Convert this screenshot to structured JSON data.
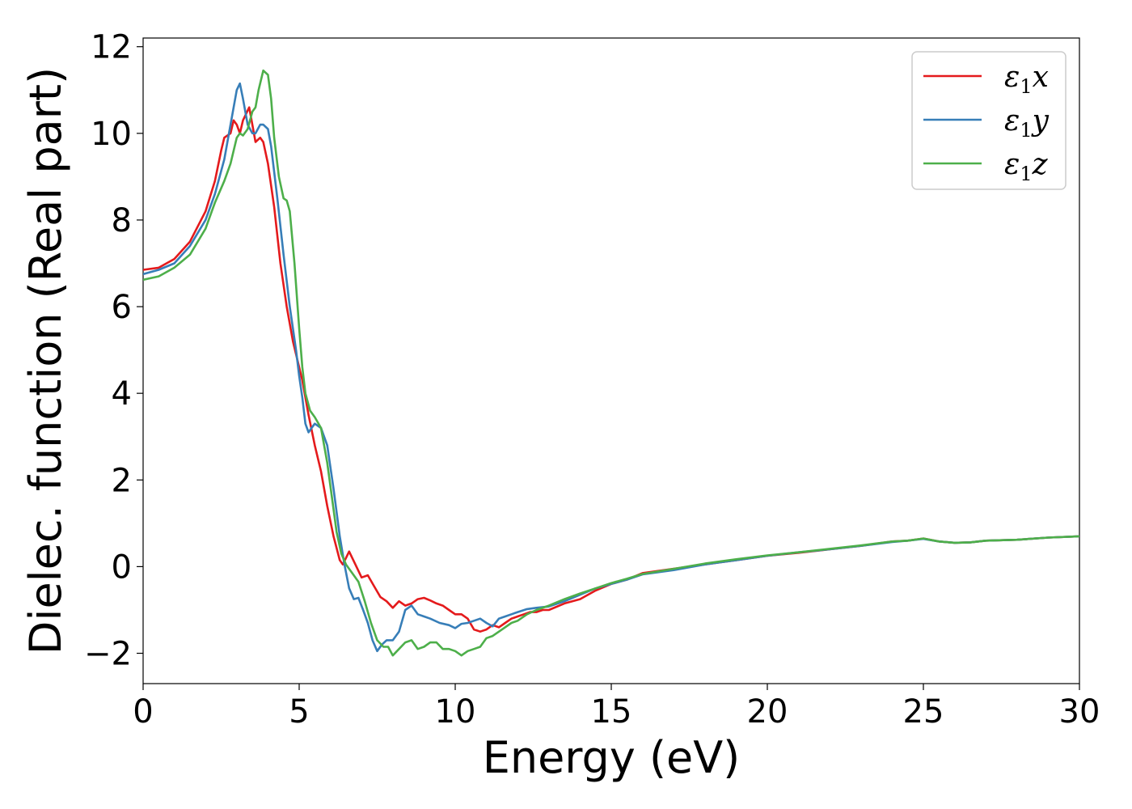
{
  "chart_data": {
    "type": "line",
    "title": "",
    "xlabel": "Energy (eV)",
    "ylabel": "Dielec. function (Real part)",
    "xlim": [
      0,
      30
    ],
    "ylim": [
      -2.7,
      12.2
    ],
    "x_ticks": [
      0,
      5,
      10,
      15,
      20,
      25,
      30
    ],
    "x_tick_labels": [
      "0",
      "5",
      "10",
      "15",
      "20",
      "25",
      "30"
    ],
    "y_ticks": [
      -2,
      0,
      2,
      4,
      6,
      8,
      10,
      12
    ],
    "y_tick_labels": [
      "−2",
      "0",
      "2",
      "4",
      "6",
      "8",
      "10",
      "12"
    ],
    "grid": false,
    "legend_position": "top-right",
    "series": [
      {
        "name": "ε",
        "sub": "1",
        "var": "x",
        "color": "#e41a1c",
        "points": [
          [
            0,
            6.85
          ],
          [
            0.5,
            6.9
          ],
          [
            1.0,
            7.1
          ],
          [
            1.5,
            7.5
          ],
          [
            2.0,
            8.2
          ],
          [
            2.3,
            8.9
          ],
          [
            2.5,
            9.6
          ],
          [
            2.6,
            9.9
          ],
          [
            2.8,
            10.0
          ],
          [
            2.9,
            10.3
          ],
          [
            3.0,
            10.2
          ],
          [
            3.1,
            10.0
          ],
          [
            3.2,
            10.3
          ],
          [
            3.4,
            10.6
          ],
          [
            3.6,
            9.8
          ],
          [
            3.75,
            9.9
          ],
          [
            3.85,
            9.8
          ],
          [
            4.0,
            9.3
          ],
          [
            4.2,
            8.3
          ],
          [
            4.4,
            7.0
          ],
          [
            4.6,
            6.0
          ],
          [
            4.8,
            5.2
          ],
          [
            5.0,
            4.6
          ],
          [
            5.1,
            4.3
          ],
          [
            5.3,
            3.5
          ],
          [
            5.5,
            2.8
          ],
          [
            5.7,
            2.2
          ],
          [
            5.9,
            1.4
          ],
          [
            6.1,
            0.7
          ],
          [
            6.3,
            0.15
          ],
          [
            6.4,
            0.05
          ],
          [
            6.5,
            0.2
          ],
          [
            6.6,
            0.35
          ],
          [
            6.8,
            0.05
          ],
          [
            7.0,
            -0.25
          ],
          [
            7.2,
            -0.2
          ],
          [
            7.4,
            -0.45
          ],
          [
            7.6,
            -0.7
          ],
          [
            7.8,
            -0.8
          ],
          [
            8.0,
            -0.95
          ],
          [
            8.2,
            -0.8
          ],
          [
            8.4,
            -0.9
          ],
          [
            8.6,
            -0.85
          ],
          [
            8.8,
            -0.75
          ],
          [
            9.0,
            -0.72
          ],
          [
            9.2,
            -0.78
          ],
          [
            9.4,
            -0.85
          ],
          [
            9.6,
            -0.9
          ],
          [
            9.8,
            -1.0
          ],
          [
            10.0,
            -1.1
          ],
          [
            10.2,
            -1.1
          ],
          [
            10.4,
            -1.2
          ],
          [
            10.6,
            -1.45
          ],
          [
            10.8,
            -1.5
          ],
          [
            11.0,
            -1.45
          ],
          [
            11.2,
            -1.35
          ],
          [
            11.4,
            -1.4
          ],
          [
            11.6,
            -1.3
          ],
          [
            11.8,
            -1.2
          ],
          [
            12.0,
            -1.15
          ],
          [
            12.2,
            -1.1
          ],
          [
            12.4,
            -1.05
          ],
          [
            12.6,
            -1.05
          ],
          [
            12.8,
            -1.0
          ],
          [
            13.0,
            -1.0
          ],
          [
            13.5,
            -0.85
          ],
          [
            14.0,
            -0.75
          ],
          [
            14.5,
            -0.55
          ],
          [
            15.0,
            -0.4
          ],
          [
            15.5,
            -0.3
          ],
          [
            16.0,
            -0.15
          ],
          [
            17.0,
            -0.05
          ],
          [
            18.0,
            0.05
          ],
          [
            19.0,
            0.15
          ],
          [
            20.0,
            0.25
          ],
          [
            21.0,
            0.32
          ],
          [
            22.0,
            0.4
          ],
          [
            23.0,
            0.48
          ],
          [
            24.0,
            0.58
          ],
          [
            24.5,
            0.6
          ],
          [
            25.0,
            0.65
          ],
          [
            25.5,
            0.58
          ],
          [
            26.0,
            0.55
          ],
          [
            26.5,
            0.56
          ],
          [
            27.0,
            0.6
          ],
          [
            28.0,
            0.62
          ],
          [
            29.0,
            0.67
          ],
          [
            30.0,
            0.7
          ]
        ]
      },
      {
        "name": "ε",
        "sub": "1",
        "var": "y",
        "color": "#377eb8",
        "points": [
          [
            0,
            6.75
          ],
          [
            0.5,
            6.85
          ],
          [
            1.0,
            7.0
          ],
          [
            1.5,
            7.4
          ],
          [
            2.0,
            8.0
          ],
          [
            2.3,
            8.6
          ],
          [
            2.6,
            9.4
          ],
          [
            2.8,
            10.2
          ],
          [
            3.0,
            11.0
          ],
          [
            3.1,
            11.15
          ],
          [
            3.2,
            10.8
          ],
          [
            3.35,
            10.2
          ],
          [
            3.5,
            10.0
          ],
          [
            3.6,
            10.0
          ],
          [
            3.75,
            10.2
          ],
          [
            3.85,
            10.2
          ],
          [
            4.0,
            10.1
          ],
          [
            4.1,
            9.7
          ],
          [
            4.3,
            8.5
          ],
          [
            4.5,
            7.2
          ],
          [
            4.7,
            6.0
          ],
          [
            4.9,
            5.0
          ],
          [
            5.0,
            4.4
          ],
          [
            5.1,
            3.9
          ],
          [
            5.2,
            3.3
          ],
          [
            5.3,
            3.1
          ],
          [
            5.4,
            3.2
          ],
          [
            5.5,
            3.3
          ],
          [
            5.7,
            3.2
          ],
          [
            5.9,
            2.8
          ],
          [
            6.1,
            1.8
          ],
          [
            6.3,
            0.7
          ],
          [
            6.45,
            0.05
          ],
          [
            6.6,
            -0.5
          ],
          [
            6.75,
            -0.75
          ],
          [
            6.9,
            -0.72
          ],
          [
            7.05,
            -1.0
          ],
          [
            7.2,
            -1.3
          ],
          [
            7.35,
            -1.7
          ],
          [
            7.5,
            -1.95
          ],
          [
            7.65,
            -1.8
          ],
          [
            7.8,
            -1.7
          ],
          [
            8.0,
            -1.7
          ],
          [
            8.2,
            -1.5
          ],
          [
            8.4,
            -1.0
          ],
          [
            8.6,
            -0.9
          ],
          [
            8.8,
            -1.1
          ],
          [
            9.0,
            -1.15
          ],
          [
            9.2,
            -1.2
          ],
          [
            9.5,
            -1.3
          ],
          [
            9.8,
            -1.35
          ],
          [
            10.0,
            -1.42
          ],
          [
            10.2,
            -1.32
          ],
          [
            10.4,
            -1.3
          ],
          [
            10.6,
            -1.25
          ],
          [
            10.8,
            -1.2
          ],
          [
            11.0,
            -1.3
          ],
          [
            11.2,
            -1.38
          ],
          [
            11.4,
            -1.2
          ],
          [
            11.6,
            -1.15
          ],
          [
            11.8,
            -1.1
          ],
          [
            12.0,
            -1.05
          ],
          [
            12.3,
            -0.98
          ],
          [
            12.6,
            -0.95
          ],
          [
            13.0,
            -0.92
          ],
          [
            13.5,
            -0.8
          ],
          [
            14.0,
            -0.65
          ],
          [
            14.5,
            -0.5
          ],
          [
            15.0,
            -0.4
          ],
          [
            15.5,
            -0.3
          ],
          [
            16.0,
            -0.18
          ],
          [
            17.0,
            -0.08
          ],
          [
            18.0,
            0.05
          ],
          [
            19.0,
            0.15
          ],
          [
            20.0,
            0.25
          ],
          [
            21.0,
            0.33
          ],
          [
            22.0,
            0.4
          ],
          [
            23.0,
            0.48
          ],
          [
            24.0,
            0.57
          ],
          [
            24.5,
            0.6
          ],
          [
            25.0,
            0.64
          ],
          [
            25.5,
            0.58
          ],
          [
            26.0,
            0.55
          ],
          [
            26.5,
            0.56
          ],
          [
            27.0,
            0.6
          ],
          [
            28.0,
            0.62
          ],
          [
            29.0,
            0.67
          ],
          [
            30.0,
            0.7
          ]
        ]
      },
      {
        "name": "ε",
        "sub": "1",
        "var": "z",
        "color": "#4daf4a",
        "points": [
          [
            0,
            6.62
          ],
          [
            0.5,
            6.7
          ],
          [
            1.0,
            6.9
          ],
          [
            1.5,
            7.2
          ],
          [
            2.0,
            7.8
          ],
          [
            2.3,
            8.4
          ],
          [
            2.6,
            8.9
          ],
          [
            2.8,
            9.3
          ],
          [
            3.0,
            9.9
          ],
          [
            3.1,
            10.0
          ],
          [
            3.2,
            9.95
          ],
          [
            3.35,
            10.1
          ],
          [
            3.5,
            10.5
          ],
          [
            3.6,
            10.6
          ],
          [
            3.7,
            11.0
          ],
          [
            3.85,
            11.45
          ],
          [
            4.0,
            11.35
          ],
          [
            4.1,
            10.8
          ],
          [
            4.2,
            9.9
          ],
          [
            4.35,
            9.0
          ],
          [
            4.5,
            8.5
          ],
          [
            4.6,
            8.45
          ],
          [
            4.7,
            8.2
          ],
          [
            4.85,
            7.0
          ],
          [
            5.0,
            5.5
          ],
          [
            5.1,
            4.6
          ],
          [
            5.2,
            4.0
          ],
          [
            5.35,
            3.6
          ],
          [
            5.5,
            3.45
          ],
          [
            5.7,
            3.2
          ],
          [
            5.9,
            2.4
          ],
          [
            6.05,
            1.6
          ],
          [
            6.2,
            0.8
          ],
          [
            6.35,
            0.3
          ],
          [
            6.5,
            0.05
          ],
          [
            6.7,
            -0.15
          ],
          [
            6.9,
            -0.35
          ],
          [
            7.1,
            -0.8
          ],
          [
            7.3,
            -1.3
          ],
          [
            7.5,
            -1.7
          ],
          [
            7.7,
            -1.85
          ],
          [
            7.85,
            -1.85
          ],
          [
            8.0,
            -2.05
          ],
          [
            8.2,
            -1.9
          ],
          [
            8.4,
            -1.75
          ],
          [
            8.6,
            -1.7
          ],
          [
            8.8,
            -1.9
          ],
          [
            9.0,
            -1.85
          ],
          [
            9.2,
            -1.75
          ],
          [
            9.4,
            -1.75
          ],
          [
            9.6,
            -1.9
          ],
          [
            9.8,
            -1.9
          ],
          [
            10.0,
            -1.95
          ],
          [
            10.2,
            -2.05
          ],
          [
            10.4,
            -1.95
          ],
          [
            10.6,
            -1.9
          ],
          [
            10.8,
            -1.85
          ],
          [
            11.0,
            -1.65
          ],
          [
            11.2,
            -1.6
          ],
          [
            11.5,
            -1.45
          ],
          [
            11.8,
            -1.3
          ],
          [
            12.0,
            -1.25
          ],
          [
            12.3,
            -1.1
          ],
          [
            12.6,
            -1.0
          ],
          [
            13.0,
            -0.9
          ],
          [
            13.5,
            -0.75
          ],
          [
            14.0,
            -0.62
          ],
          [
            14.5,
            -0.5
          ],
          [
            15.0,
            -0.38
          ],
          [
            15.5,
            -0.28
          ],
          [
            16.0,
            -0.17
          ],
          [
            17.0,
            -0.05
          ],
          [
            18.0,
            0.07
          ],
          [
            19.0,
            0.17
          ],
          [
            20.0,
            0.26
          ],
          [
            21.0,
            0.33
          ],
          [
            22.0,
            0.41
          ],
          [
            23.0,
            0.49
          ],
          [
            24.0,
            0.58
          ],
          [
            24.5,
            0.6
          ],
          [
            25.0,
            0.65
          ],
          [
            25.5,
            0.58
          ],
          [
            26.0,
            0.55
          ],
          [
            26.5,
            0.56
          ],
          [
            27.0,
            0.6
          ],
          [
            28.0,
            0.62
          ],
          [
            29.0,
            0.67
          ],
          [
            30.0,
            0.7
          ]
        ]
      }
    ]
  }
}
